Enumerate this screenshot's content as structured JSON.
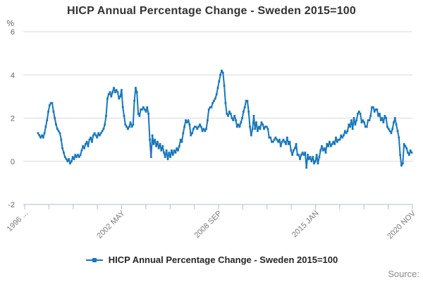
{
  "chart": {
    "title": "HICP Annual Percentage Change - Sweden 2015=100",
    "y_unit": "%"
  },
  "legend": {
    "label": "HICP Annual Percentage Change - Sweden 2015=100"
  },
  "footer": {
    "source": "Source:"
  },
  "colors": {
    "line": "#1777bd",
    "grid": "#d9d9d9",
    "axis": "#aabfd4",
    "tick_label": "#7a7a7a",
    "y_label": "#666666"
  },
  "chart_data": {
    "type": "line",
    "title": "HICP Annual Percentage Change - Sweden 2015=100",
    "frequency": "monthly",
    "x_start": "1996-10",
    "x_end": "2021-01",
    "x_tick_labels": [
      "1996 ...",
      "2002 MAY",
      "2008 SEP",
      "2015 JAN",
      "2020 NOV"
    ],
    "x_tick_count": 17,
    "x_label_every": 4,
    "ylabel": "%",
    "ylim": [
      -2,
      6
    ],
    "y_ticks": [
      6,
      4,
      2,
      0,
      -2
    ],
    "grid": "horizontal",
    "legend_position": "bottom",
    "values": [
      1.3,
      1.2,
      1.1,
      1.2,
      1.1,
      1.3,
      1.6,
      1.9,
      2.3,
      2.6,
      2.7,
      2.7,
      2.3,
      2.0,
      1.7,
      1.5,
      1.4,
      1.3,
      1.0,
      0.6,
      0.4,
      0.2,
      0.1,
      0.0,
      0.1,
      -0.1,
      0.0,
      0.2,
      0.1,
      0.3,
      0.2,
      0.3,
      0.2,
      0.3,
      0.5,
      0.7,
      0.6,
      0.8,
      0.9,
      0.7,
      1.0,
      1.1,
      0.9,
      1.2,
      1.3,
      1.2,
      1.1,
      1.3,
      1.2,
      1.3,
      1.4,
      1.5,
      1.7,
      2.1,
      2.9,
      3.1,
      3.2,
      3.0,
      3.2,
      3.4,
      3.2,
      3.3,
      3.2,
      2.9,
      3.0,
      3.3,
      2.5,
      2.1,
      1.7,
      1.6,
      1.5,
      1.6,
      1.8,
      1.6,
      1.7,
      2.8,
      3.4,
      3.2,
      2.2,
      2.1,
      2.4,
      2.4,
      2.5,
      2.4,
      2.3,
      2.5,
      2.2,
      1.0,
      0.2,
      1.2,
      0.8,
      1.0,
      0.7,
      0.9,
      0.6,
      0.8,
      0.5,
      0.7,
      0.4,
      0.2,
      0.5,
      0.1,
      0.4,
      0.2,
      0.5,
      0.3,
      0.5,
      0.4,
      0.6,
      0.5,
      0.7,
      1.0,
      0.9,
      1.3,
      1.6,
      1.9,
      1.8,
      1.9,
      1.7,
      1.2,
      1.3,
      1.5,
      1.6,
      1.6,
      1.5,
      1.6,
      1.7,
      1.6,
      1.4,
      1.5,
      1.4,
      1.5,
      1.9,
      2.4,
      2.5,
      2.5,
      2.7,
      2.8,
      2.9,
      3.1,
      3.4,
      3.7,
      4.0,
      4.2,
      4.1,
      3.5,
      2.7,
      2.2,
      2.1,
      2.3,
      2.2,
      2.0,
      1.9,
      2.1,
      1.9,
      1.6,
      1.7,
      1.6,
      1.8,
      2.0,
      2.3,
      2.5,
      2.8,
      2.8,
      2.3,
      1.6,
      1.2,
      1.5,
      2.1,
      1.5,
      1.8,
      1.4,
      1.6,
      1.5,
      1.8,
      1.7,
      1.5,
      1.6,
      1.6,
      1.5,
      1.1,
      1.1,
      0.9,
      0.9,
      1.0,
      1.1,
      1.0,
      0.9,
      1.0,
      0.7,
      0.9,
      1.0,
      0.9,
      0.8,
      1.1,
      0.8,
      0.9,
      0.5,
      0.3,
      0.5,
      0.6,
      0.8,
      0.3,
      0.3,
      0.1,
      0.3,
      0.4,
      0.3,
      0.4,
      -0.3,
      0.3,
      0.1,
      0.2,
      0.0,
      0.2,
      -0.1,
      0.0,
      0.3,
      -0.1,
      0.2,
      0.5,
      0.7,
      0.5,
      0.6,
      0.4,
      0.8,
      0.7,
      0.9,
      0.7,
      0.8,
      0.9,
      0.8,
      1.1,
      0.9,
      1.0,
      1.0,
      1.2,
      1.1,
      1.2,
      1.4,
      1.3,
      1.4,
      1.7,
      1.6,
      1.9,
      1.5,
      2.0,
      1.7,
      1.9,
      2.2,
      2.3,
      2.2,
      1.8,
      1.9,
      1.8,
      1.6,
      1.6,
      1.9,
      1.9,
      2.1,
      2.5,
      2.5,
      2.3,
      2.4,
      2.4,
      2.1,
      2.2,
      1.9,
      2.0,
      1.8,
      2.1,
      2.0,
      1.6,
      1.5,
      1.4,
      1.3,
      1.5,
      1.8,
      2.0,
      1.7,
      1.4,
      1.1,
      0.3,
      -0.2,
      -0.1,
      0.8,
      0.7,
      0.6,
      0.4,
      0.3,
      0.5,
      0.4
    ]
  }
}
